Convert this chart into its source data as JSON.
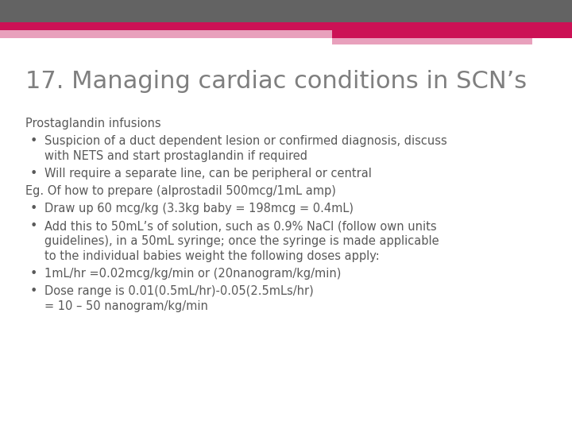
{
  "title": "17. Managing cardiac conditions in SCN’s",
  "title_color": "#7f7f7f",
  "title_fontsize": 22,
  "background_color": "#ffffff",
  "header_grey_color": "#636363",
  "pink_dark_color": "#cc1155",
  "pink_light_color": "#e8a0bc",
  "body_text_color": "#595959",
  "body_fontsize": 10.5,
  "bullet_symbol": "•",
  "lines": [
    {
      "type": "subtitle",
      "text": "Prostaglandin infusions",
      "indent": 0
    },
    {
      "type": "bullet",
      "text": "Suspicion of a duct dependent lesion or confirmed diagnosis, discuss\n    with NETS and start prostaglandin if required",
      "nrows": 2
    },
    {
      "type": "bullet",
      "text": "Will require a separate line, can be peripheral or central",
      "nrows": 1
    },
    {
      "type": "normal",
      "text": "Eg. Of how to prepare (alprostadil 500mcg/1mL amp)",
      "indent": 0
    },
    {
      "type": "bullet",
      "text": "Draw up 60 mcg/kg (3.3kg baby = 198mcg = 0.4mL)",
      "nrows": 1
    },
    {
      "type": "bullet",
      "text": "Add this to 50mL’s of solution, such as 0.9% NaCl (follow own units\n    guidelines), in a 50mL syringe; once the syringe is made applicable\n    to the individual babies weight the following doses apply:",
      "nrows": 3
    },
    {
      "type": "bullet",
      "text": "1mL/hr =0.02mcg/kg/min or (20nanogram/kg/min)",
      "nrows": 1
    },
    {
      "type": "bullet",
      "text": "Dose range is 0.01(0.5mL/hr)-0.05(2.5mLs/hr)\n         = 10 – 50 nanogram/kg/min",
      "nrows": 2
    }
  ]
}
